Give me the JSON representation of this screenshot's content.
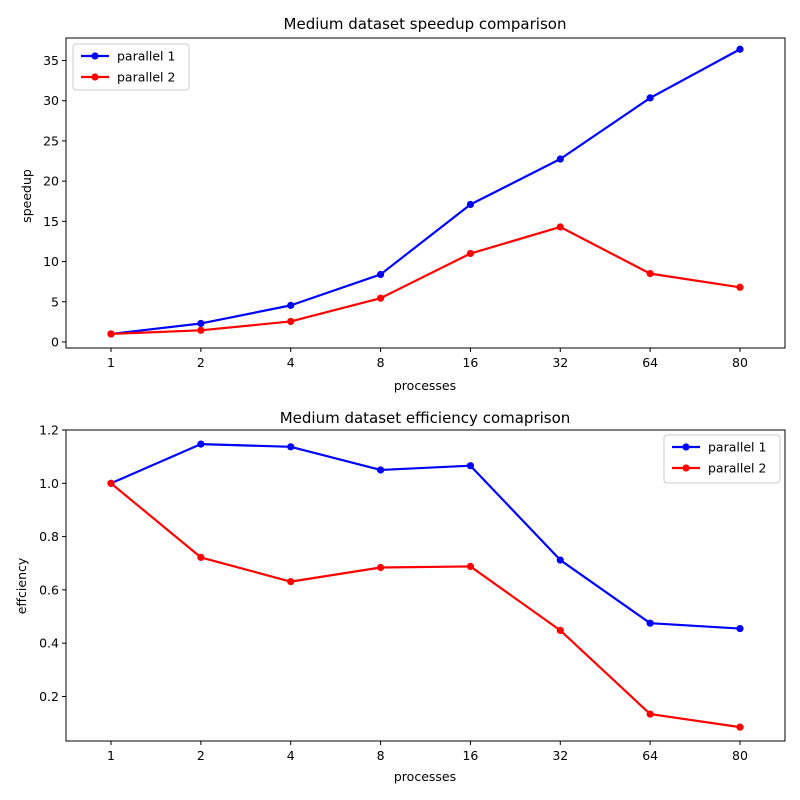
{
  "chart_data": [
    {
      "type": "line",
      "title": "Medium dataset speedup comparison",
      "xlabel": "processes",
      "ylabel": "speedup",
      "categories": [
        "1",
        "2",
        "4",
        "8",
        "16",
        "32",
        "64",
        "80"
      ],
      "ylim": [
        -0.75,
        37.8
      ],
      "yticks": [
        0,
        5,
        10,
        15,
        20,
        25,
        30,
        35
      ],
      "legend_position": "upper-left",
      "grid": false,
      "series": [
        {
          "name": "parallel 1",
          "color": "#0000ff",
          "values": [
            1.0,
            2.3,
            4.55,
            8.4,
            17.1,
            22.75,
            30.35,
            36.4
          ]
        },
        {
          "name": "parallel 2",
          "color": "#ff0000",
          "values": [
            1.0,
            1.45,
            2.55,
            5.45,
            11.0,
            14.3,
            8.5,
            6.8
          ]
        }
      ]
    },
    {
      "type": "line",
      "title": "Medium dataset efficiency comaprison",
      "xlabel": "processes",
      "ylabel": "effciency",
      "categories": [
        "1",
        "2",
        "4",
        "8",
        "16",
        "32",
        "64",
        "80"
      ],
      "ylim": [
        0.033,
        1.2
      ],
      "yticks": [
        0.2,
        0.4,
        0.6,
        0.8,
        1.0,
        1.2
      ],
      "ytick_labels": [
        "0.2",
        "0.4",
        "0.6",
        "0.8",
        "1.0",
        "1.2"
      ],
      "legend_position": "upper-right",
      "grid": false,
      "series": [
        {
          "name": "parallel 1",
          "color": "#0000ff",
          "values": [
            1.0,
            1.147,
            1.137,
            1.05,
            1.066,
            0.712,
            0.475,
            0.455
          ]
        },
        {
          "name": "parallel 2",
          "color": "#ff0000",
          "values": [
            1.0,
            0.722,
            0.631,
            0.684,
            0.688,
            0.448,
            0.134,
            0.085
          ]
        }
      ]
    }
  ]
}
